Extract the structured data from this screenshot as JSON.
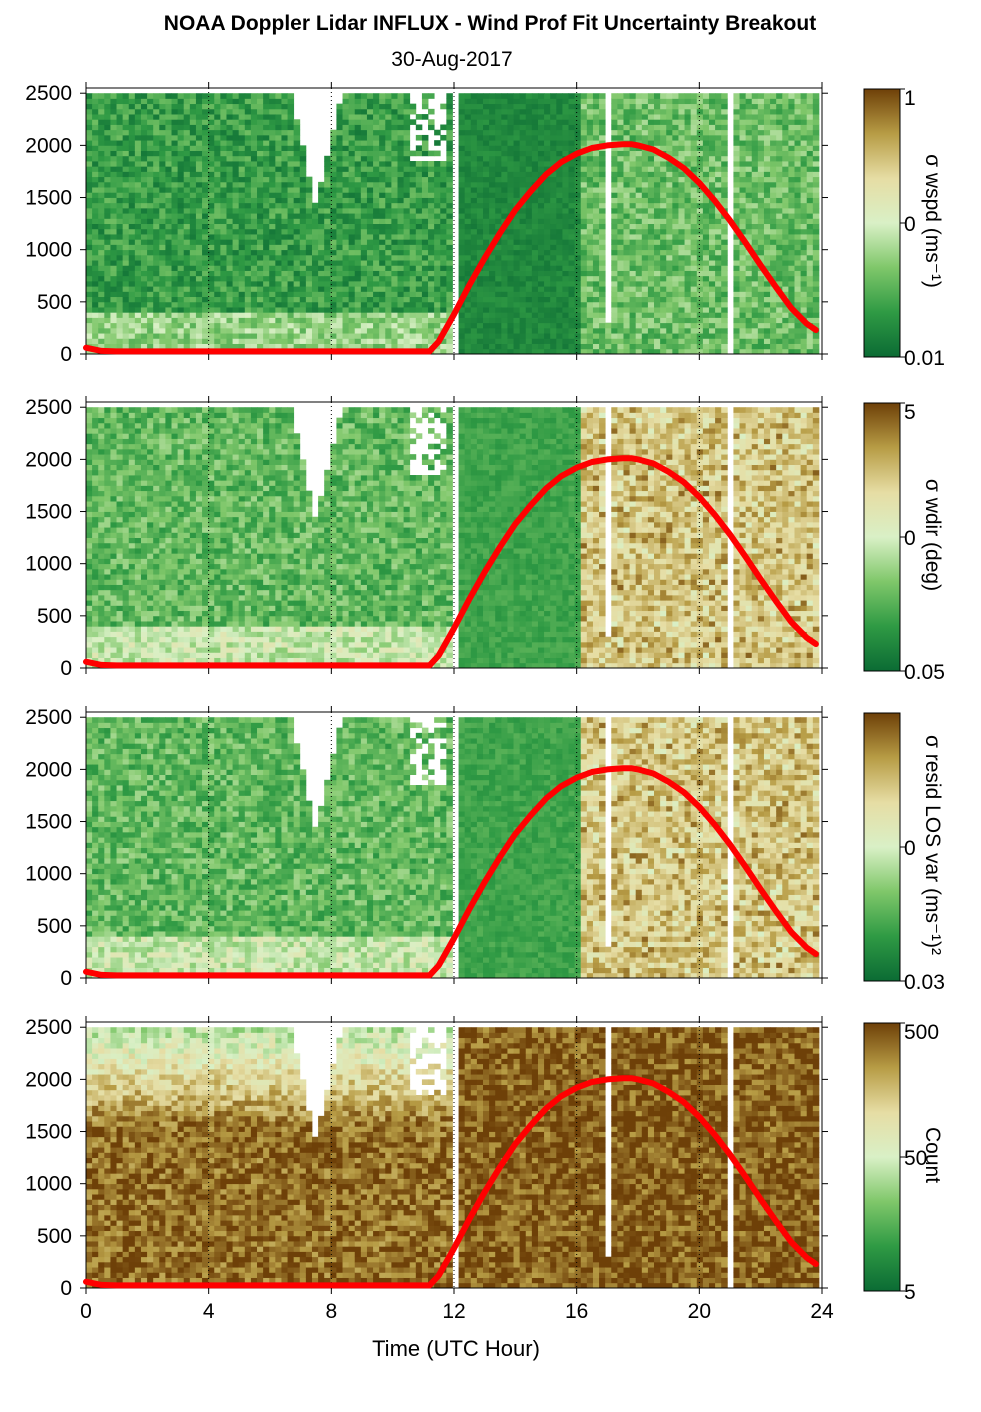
{
  "title": "NOAA Doppler Lidar INFLUX - Wind Prof Fit Uncertainty Breakout",
  "subtitle": "30-Aug-2017",
  "chart_data": [
    {
      "type": "heatmap",
      "panel": 1,
      "ylabel": "",
      "colorbar_label": "σ wspd (ms⁻¹)",
      "colorbar_ticks": [
        "1",
        "0",
        "0.01"
      ],
      "colorbar_scale": "log",
      "colormap": [
        "#0b6b34",
        "#2f9a44",
        "#7fc76a",
        "#d9f0c6",
        "#e6dda4",
        "#b79c45",
        "#6e4008"
      ],
      "ylim": [
        0,
        2550
      ],
      "xlim": [
        0,
        24
      ],
      "yticks": [
        0,
        500,
        1000,
        1500,
        2000,
        2500
      ],
      "xticks": [
        0,
        4,
        8,
        12,
        16,
        20,
        24
      ],
      "grid_dotted_x": [
        4,
        8,
        12,
        16,
        20,
        24
      ],
      "data_gaps_hours": [
        [
          11.8,
          12.0
        ],
        [
          16.7,
          17.0
        ],
        [
          20.8,
          21.0
        ]
      ]
    },
    {
      "type": "heatmap",
      "panel": 2,
      "ylabel": "",
      "colorbar_label": "σ wdir (deg)",
      "colorbar_ticks": [
        "5",
        "0",
        "0.05"
      ],
      "colorbar_scale": "log",
      "colormap": [
        "#0b6b34",
        "#2f9a44",
        "#7fc76a",
        "#d9f0c6",
        "#e6dda4",
        "#b79c45",
        "#6e4008"
      ],
      "ylim": [
        0,
        2550
      ],
      "xlim": [
        0,
        24
      ],
      "yticks": [
        0,
        500,
        1000,
        1500,
        2000,
        2500
      ],
      "xticks": [
        0,
        4,
        8,
        12,
        16,
        20,
        24
      ]
    },
    {
      "type": "heatmap",
      "panel": 3,
      "ylabel": "",
      "colorbar_label": "σ resid LOS var (ms⁻¹)²",
      "colorbar_ticks": [
        "0",
        "0.03"
      ],
      "colorbar_scale": "log",
      "colormap": [
        "#0b6b34",
        "#2f9a44",
        "#7fc76a",
        "#d9f0c6",
        "#e6dda4",
        "#b79c45",
        "#6e4008"
      ],
      "ylim": [
        0,
        2550
      ],
      "xlim": [
        0,
        24
      ],
      "yticks": [
        0,
        500,
        1000,
        1500,
        2000,
        2500
      ],
      "xticks": [
        0,
        4,
        8,
        12,
        16,
        20,
        24
      ]
    },
    {
      "type": "heatmap",
      "panel": 4,
      "ylabel": "",
      "colorbar_label": "Count",
      "colorbar_ticks": [
        "500",
        "50",
        "5"
      ],
      "colorbar_scale": "log",
      "colormap": [
        "#0b6b34",
        "#2f9a44",
        "#7fc76a",
        "#d9f0c6",
        "#e6dda4",
        "#b79c45",
        "#6e4008"
      ],
      "ylim": [
        0,
        2550
      ],
      "xlim": [
        0,
        24
      ],
      "yticks": [
        0,
        500,
        1000,
        1500,
        2000,
        2500
      ],
      "xticks": [
        0,
        4,
        8,
        12,
        16,
        20,
        24
      ],
      "xlabel": "Time (UTC Hour)"
    }
  ],
  "overlay_curve": {
    "color": "#ff0000",
    "x": [
      0,
      0.5,
      1,
      2,
      3,
      4,
      5,
      6,
      7,
      8,
      9,
      10,
      11,
      11.2,
      11.5,
      12,
      12.5,
      13,
      13.5,
      14,
      14.5,
      15,
      15.5,
      16,
      16.5,
      17,
      17.5,
      17.8,
      18,
      18.5,
      19,
      19.5,
      20,
      20.5,
      21,
      21.5,
      22,
      22.5,
      23,
      23.5,
      23.8
    ],
    "y": [
      60,
      30,
      25,
      25,
      25,
      25,
      25,
      25,
      25,
      25,
      25,
      25,
      25,
      25,
      120,
      380,
      660,
      920,
      1160,
      1380,
      1560,
      1720,
      1840,
      1920,
      1975,
      2000,
      2010,
      2010,
      2000,
      1960,
      1880,
      1780,
      1640,
      1470,
      1280,
      1070,
      850,
      640,
      440,
      290,
      230
    ]
  }
}
